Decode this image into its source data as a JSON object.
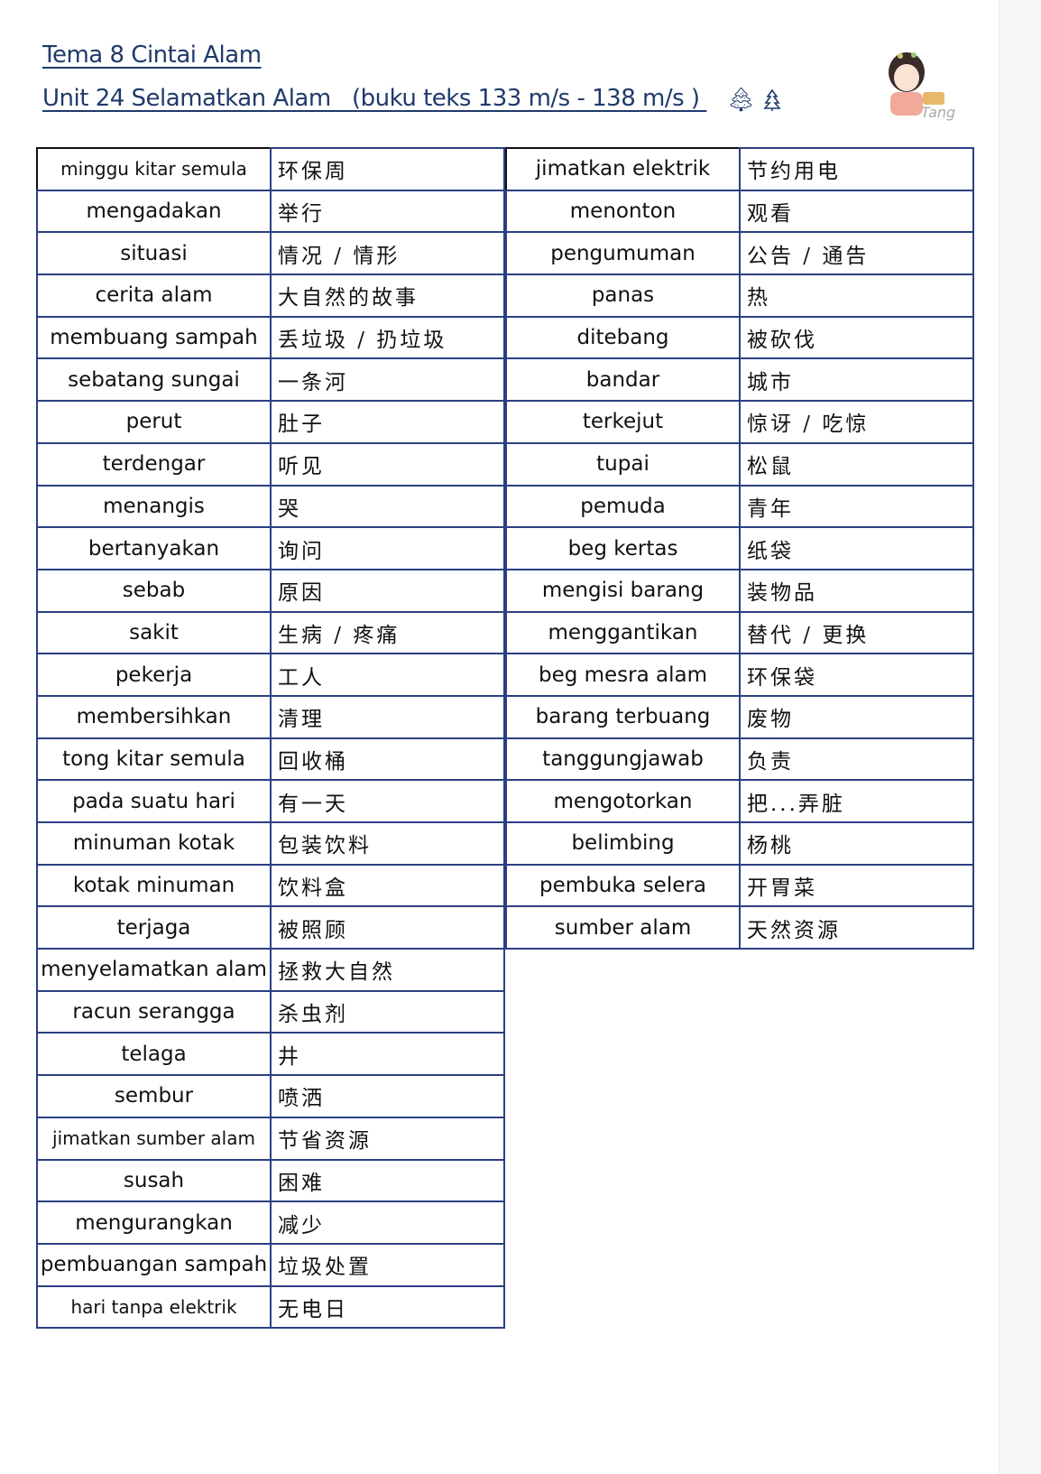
{
  "header": {
    "title": "Tema 8 Cintai Alam",
    "subtitle": "Unit 24 Selamatkan Alam   (buku teks 133 m/s - 138 m/s ) ",
    "icons": [
      "tree-filled-icon",
      "tree-outline-icon"
    ],
    "logo_text": "Tang"
  },
  "colors": {
    "heading": "#1f3a6b",
    "border": "#2b3f82"
  },
  "left_table": [
    [
      "minggu kitar semula",
      "环保周"
    ],
    [
      "mengadakan",
      "举行"
    ],
    [
      "situasi",
      "情况 / 情形"
    ],
    [
      "cerita alam",
      "大自然的故事"
    ],
    [
      "membuang sampah",
      "丢垃圾 / 扔垃圾"
    ],
    [
      "sebatang sungai",
      "一条河"
    ],
    [
      "perut",
      "肚子"
    ],
    [
      "terdengar",
      "听见"
    ],
    [
      "menangis",
      "哭"
    ],
    [
      "bertanyakan",
      "询问"
    ],
    [
      "sebab",
      "原因"
    ],
    [
      "sakit",
      "生病 / 疼痛"
    ],
    [
      "pekerja",
      "工人"
    ],
    [
      "membersihkan",
      "清理"
    ],
    [
      "tong kitar semula",
      "回收桶"
    ],
    [
      "pada suatu hari",
      "有一天"
    ],
    [
      "minuman kotak",
      "包装饮料"
    ],
    [
      "kotak minuman",
      "饮料盒"
    ],
    [
      "terjaga",
      "被照顾"
    ],
    [
      "menyelamatkan alam",
      "拯救大自然"
    ],
    [
      "racun serangga",
      "杀虫剂"
    ],
    [
      "telaga",
      "井"
    ],
    [
      "sembur",
      "喷洒"
    ],
    [
      "jimatkan sumber alam",
      "节省资源"
    ],
    [
      "susah",
      "困难"
    ],
    [
      "mengurangkan",
      "减少"
    ],
    [
      "pembuangan sampah",
      "垃圾处置"
    ],
    [
      "hari tanpa elektrik",
      "无电日"
    ]
  ],
  "right_table": [
    [
      "jimatkan elektrik",
      "节约用电"
    ],
    [
      "menonton",
      "观看"
    ],
    [
      "pengumuman",
      "公告 / 通告"
    ],
    [
      "panas",
      "热"
    ],
    [
      "ditebang",
      "被砍伐"
    ],
    [
      "bandar",
      "城市"
    ],
    [
      "terkejut",
      "惊讶 / 吃惊"
    ],
    [
      "tupai",
      "松鼠"
    ],
    [
      "pemuda",
      "青年"
    ],
    [
      "beg kertas",
      "纸袋"
    ],
    [
      "mengisi barang",
      "装物品"
    ],
    [
      "menggantikan",
      "替代 / 更换"
    ],
    [
      "beg mesra alam",
      "环保袋"
    ],
    [
      "barang terbuang",
      "废物"
    ],
    [
      "tanggungjawab",
      "负责"
    ],
    [
      "mengotorkan",
      "把...弄脏"
    ],
    [
      "belimbing",
      "杨桃"
    ],
    [
      "pembuka selera",
      "开胃菜"
    ],
    [
      "sumber alam",
      "天然资源"
    ]
  ]
}
